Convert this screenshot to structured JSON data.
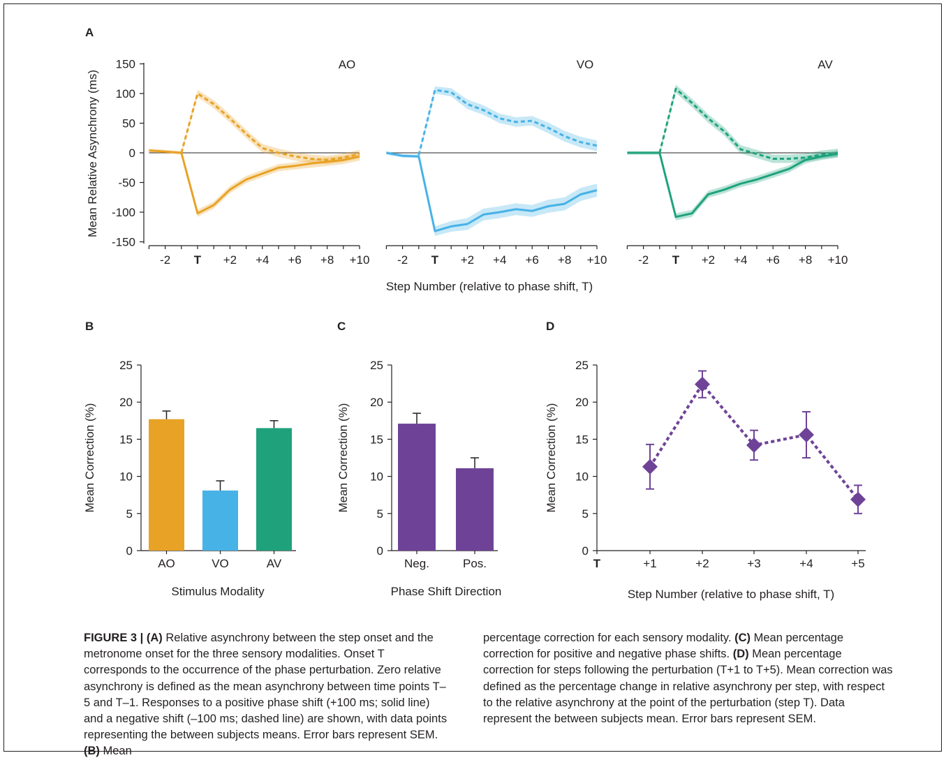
{
  "colors": {
    "ao": "#e8a225",
    "vo": "#47b2e6",
    "av": "#1fa27c",
    "purple": "#6e4397",
    "axis": "#231f20"
  },
  "panel_a": {
    "letter": "A",
    "ylabel": "Mean Relative Asynchrony (ms)",
    "xlabel": "Step Number (relative to phase shift, T)",
    "yticks": [
      "150",
      "100",
      "50",
      "0",
      "-50",
      "-100",
      "-150"
    ],
    "xticks": [
      "-2",
      "T",
      "+2",
      "+4",
      "+6",
      "+8",
      "+10"
    ]
  },
  "panel_b": {
    "letter": "B",
    "ylabel": "Mean Correction (%)",
    "xlabel": "Stimulus Modality",
    "yticks": [
      "25",
      "20",
      "15",
      "10",
      "5",
      "0"
    ]
  },
  "panel_c": {
    "letter": "C",
    "ylabel": "Mean Correction (%)",
    "xlabel": "Phase Shift Direction",
    "yticks": [
      "25",
      "20",
      "15",
      "10",
      "5",
      "0"
    ]
  },
  "panel_d": {
    "letter": "D",
    "ylabel": "Mean Correction (%)",
    "xlabel": "Step Number (relative to phase shift, T)",
    "yticks": [
      "25",
      "20",
      "15",
      "10",
      "5",
      "0"
    ]
  },
  "chart_data": [
    {
      "type": "line",
      "panel": "A",
      "subplots": [
        {
          "title": "AO",
          "color": "#e8a225",
          "x": [
            -3,
            -2,
            -1,
            0,
            1,
            2,
            3,
            4,
            5,
            6,
            7,
            8,
            9,
            10
          ],
          "series": [
            {
              "style": "solid",
              "values": [
                4,
                2,
                0,
                -102,
                -88,
                -62,
                -45,
                -35,
                -25,
                -22,
                -18,
                -15,
                -12,
                -6
              ],
              "sem": [
                3,
                3,
                3,
                6,
                6,
                6,
                6,
                6,
                6,
                6,
                7,
                7,
                7,
                7
              ]
            },
            {
              "style": "dashed",
              "values": [
                null,
                null,
                0,
                100,
                82,
                58,
                32,
                8,
                0,
                -6,
                -10,
                -12,
                -8,
                -2
              ],
              "sem": [
                0,
                0,
                3,
                6,
                7,
                7,
                7,
                7,
                7,
                7,
                7,
                7,
                7,
                7
              ]
            }
          ]
        },
        {
          "title": "VO",
          "color": "#47b2e6",
          "x": [
            -3,
            -2,
            -1,
            0,
            1,
            2,
            3,
            4,
            5,
            6,
            7,
            8,
            9,
            10
          ],
          "series": [
            {
              "style": "solid",
              "values": [
                0,
                -5,
                -6,
                -132,
                -124,
                -120,
                -104,
                -100,
                -95,
                -98,
                -90,
                -86,
                -70,
                -63
              ],
              "sem": [
                3,
                3,
                3,
                8,
                9,
                10,
                10,
                10,
                10,
                10,
                11,
                11,
                11,
                11
              ]
            },
            {
              "style": "dashed",
              "values": [
                null,
                null,
                -4,
                106,
                102,
                82,
                72,
                58,
                52,
                54,
                42,
                28,
                18,
                12
              ],
              "sem": [
                0,
                0,
                3,
                6,
                7,
                8,
                8,
                8,
                8,
                8,
                9,
                9,
                9,
                9
              ]
            }
          ]
        },
        {
          "title": "AV",
          "color": "#1fa27c",
          "x": [
            -3,
            -2,
            -1,
            0,
            1,
            2,
            3,
            4,
            5,
            6,
            7,
            8,
            9,
            10
          ],
          "series": [
            {
              "style": "solid",
              "values": [
                0,
                0,
                0,
                -108,
                -102,
                -70,
                -62,
                -52,
                -45,
                -36,
                -27,
                -12,
                -6,
                -2
              ],
              "sem": [
                3,
                3,
                3,
                6,
                6,
                6,
                6,
                6,
                6,
                6,
                6,
                6,
                6,
                6
              ]
            },
            {
              "style": "dashed",
              "values": [
                null,
                null,
                0,
                108,
                84,
                58,
                36,
                6,
                -2,
                -10,
                -10,
                -8,
                -3,
                0
              ],
              "sem": [
                0,
                0,
                3,
                7,
                7,
                7,
                7,
                7,
                7,
                7,
                7,
                7,
                7,
                7
              ]
            }
          ]
        }
      ],
      "xtick_values": [
        -2,
        0,
        2,
        4,
        6,
        8,
        10
      ],
      "xlim": [
        -3,
        10
      ],
      "ylim": [
        -150,
        150
      ]
    },
    {
      "type": "bar",
      "panel": "B",
      "categories": [
        "AO",
        "VO",
        "AV"
      ],
      "values": [
        17.7,
        8.1,
        16.5
      ],
      "sem": [
        1.1,
        1.3,
        1.0
      ],
      "colors": [
        "#e8a225",
        "#47b2e6",
        "#1fa27c"
      ],
      "ylim": [
        0,
        25
      ]
    },
    {
      "type": "bar",
      "panel": "C",
      "categories": [
        "Neg.",
        "Pos."
      ],
      "values": [
        17.1,
        11.1
      ],
      "sem": [
        1.4,
        1.4
      ],
      "colors": [
        "#6e4397",
        "#6e4397"
      ],
      "ylim": [
        0,
        25
      ]
    },
    {
      "type": "line",
      "panel": "D",
      "categories": [
        "T",
        "+1",
        "+2",
        "+3",
        "+4",
        "+5"
      ],
      "values": [
        null,
        11.3,
        22.4,
        14.2,
        15.6,
        6.9
      ],
      "sem": [
        null,
        3.0,
        1.8,
        2.0,
        3.1,
        1.9
      ],
      "style": "dashed",
      "marker": "diamond",
      "color": "#6e4397",
      "ylim": [
        0,
        25
      ]
    }
  ],
  "caption": {
    "figure_label": "FIGURE 3 |",
    "a_tag": "(A)",
    "a_text": " Relative asynchrony between the step onset and the metronome onset for the three sensory modalities. Onset T corresponds to the occurrence of the phase perturbation. Zero relative asynchrony is defined as the mean asynchrony between time points T–5 and T–1. Responses to a positive phase shift (+100 ms; solid line) and a negative shift (–100 ms; dashed line) are shown, with data points representing the between subjects means. Error bars represent SEM. ",
    "b_tag": "(B)",
    "b_text": " Mean percentage correction for each sensory modality. ",
    "c_tag": "(C)",
    "c_text": " Mean percentage correction for positive and negative phase shifts. ",
    "d_tag": "(D)",
    "d_text": " Mean percentage correction for steps following the perturbation (T+1 to T+5). Mean correction was defined as the percentage change in relative asynchrony per step, with respect to the relative asynchrony at the point of the perturbation (step T). Data represent the between subjects mean. Error bars represent SEM."
  }
}
